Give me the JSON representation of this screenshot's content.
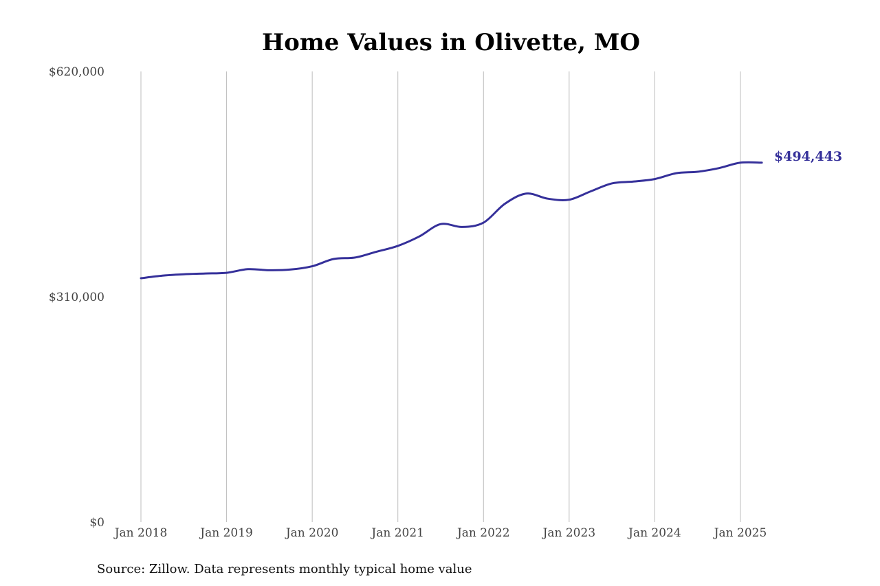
{
  "chart_data": {
    "type": "line",
    "title": "Home Values in Olivette, MO",
    "source_note": "Source: Zillow. Data represents monthly typical home value",
    "xlabel": "",
    "ylabel": "",
    "x_range": [
      "2018-01",
      "2025-04"
    ],
    "ylim": [
      0,
      620000
    ],
    "y_ticks": [
      {
        "value": 0,
        "label": "$0"
      },
      {
        "value": 310000,
        "label": "$310,000"
      },
      {
        "value": 620000,
        "label": "$620,000"
      }
    ],
    "x_ticks": [
      {
        "date": "2018-01",
        "label": "Jan 2018"
      },
      {
        "date": "2019-01",
        "label": "Jan 2019"
      },
      {
        "date": "2020-01",
        "label": "Jan 2020"
      },
      {
        "date": "2021-01",
        "label": "Jan 2021"
      },
      {
        "date": "2022-01",
        "label": "Jan 2022"
      },
      {
        "date": "2023-01",
        "label": "Jan 2023"
      },
      {
        "date": "2024-01",
        "label": "Jan 2024"
      },
      {
        "date": "2025-01",
        "label": "Jan 2025"
      }
    ],
    "grid": {
      "vertical": true,
      "horizontal": false
    },
    "line_color": "#35309a",
    "end_label": "$494,443",
    "series": [
      {
        "values": [
          {
            "x": "2018-01",
            "y": 335500
          },
          {
            "x": "2018-04",
            "y": 339000
          },
          {
            "x": "2018-07",
            "y": 341000
          },
          {
            "x": "2018-10",
            "y": 342000
          },
          {
            "x": "2019-01",
            "y": 343000
          },
          {
            "x": "2019-04",
            "y": 348000
          },
          {
            "x": "2019-07",
            "y": 346500
          },
          {
            "x": "2019-10",
            "y": 347500
          },
          {
            "x": "2020-01",
            "y": 352000
          },
          {
            "x": "2020-04",
            "y": 362000
          },
          {
            "x": "2020-07",
            "y": 364000
          },
          {
            "x": "2020-10",
            "y": 372000
          },
          {
            "x": "2021-01",
            "y": 380000
          },
          {
            "x": "2021-04",
            "y": 393000
          },
          {
            "x": "2021-07",
            "y": 410000
          },
          {
            "x": "2021-10",
            "y": 406000
          },
          {
            "x": "2022-01",
            "y": 412000
          },
          {
            "x": "2022-04",
            "y": 438000
          },
          {
            "x": "2022-07",
            "y": 452000
          },
          {
            "x": "2022-10",
            "y": 445000
          },
          {
            "x": "2023-01",
            "y": 443500
          },
          {
            "x": "2023-04",
            "y": 455000
          },
          {
            "x": "2023-07",
            "y": 466000
          },
          {
            "x": "2023-10",
            "y": 468500
          },
          {
            "x": "2024-01",
            "y": 472000
          },
          {
            "x": "2024-04",
            "y": 480000
          },
          {
            "x": "2024-07",
            "y": 482000
          },
          {
            "x": "2024-10",
            "y": 487000
          },
          {
            "x": "2025-01",
            "y": 494500
          },
          {
            "x": "2025-04",
            "y": 494443
          }
        ]
      }
    ]
  }
}
